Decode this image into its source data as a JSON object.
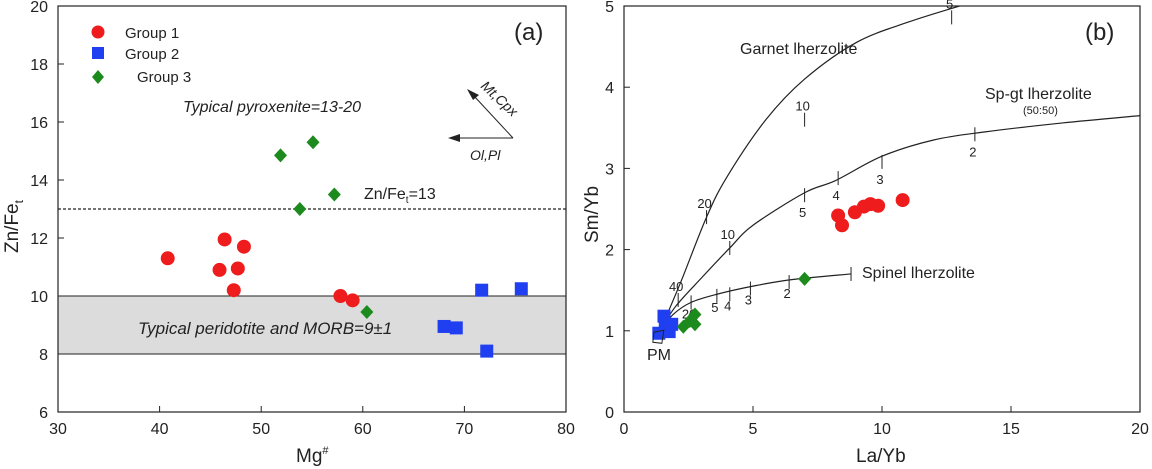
{
  "colors": {
    "group1": "#ee1c1c",
    "group2": "#1f3ff0",
    "group3": "#1d8a1d",
    "band": "#dcdcdc",
    "axis": "#222222"
  },
  "chart_data": [
    {
      "type": "scatter",
      "panel_label": "(a)",
      "xlabel_main": "Mg",
      "xlabel_sup": "#",
      "ylabel_main": "Zn/Fe",
      "ylabel_sub": "t",
      "xlim": [
        30,
        80
      ],
      "ylim": [
        6,
        20
      ],
      "xticks": [
        30,
        40,
        50,
        60,
        70,
        80
      ],
      "yticks": [
        6,
        8,
        10,
        12,
        14,
        16,
        18,
        20
      ],
      "legend": {
        "placement": "top-left",
        "entries": [
          "Group 1",
          "Group 2",
          "Group 3"
        ]
      },
      "series": [
        {
          "name": "Group 1",
          "marker": "circle",
          "color": "#ee1c1c",
          "points": [
            [
              40.8,
              11.3
            ],
            [
              45.9,
              10.9
            ],
            [
              46.4,
              11.95
            ],
            [
              47.3,
              10.2
            ],
            [
              47.7,
              10.95
            ],
            [
              48.3,
              11.7
            ],
            [
              57.8,
              10.0
            ],
            [
              59.0,
              9.85
            ]
          ]
        },
        {
          "name": "Group 2",
          "marker": "square",
          "color": "#1f3ff0",
          "points": [
            [
              68.0,
              8.95
            ],
            [
              69.2,
              8.9
            ],
            [
              71.7,
              10.2
            ],
            [
              72.2,
              8.1
            ],
            [
              75.6,
              10.25
            ]
          ]
        },
        {
          "name": "Group 3",
          "marker": "diamond",
          "color": "#1d8a1d",
          "points": [
            [
              51.9,
              14.85
            ],
            [
              53.8,
              13.0
            ],
            [
              55.1,
              15.3
            ],
            [
              57.2,
              13.5
            ],
            [
              60.4,
              9.45
            ]
          ]
        }
      ],
      "band": {
        "y": [
          8,
          10
        ],
        "label": "Typical peridotite and MORB=9±1"
      },
      "reference_line": {
        "y": 13,
        "label_main": "Zn/Fe",
        "label_sub": "t",
        "label_tail": "=13"
      },
      "text_pyroxenite": "Typical pyroxenite=13-20",
      "arrow_up_label": "Mt,Cpx",
      "arrow_left_label": "Ol,Pl"
    },
    {
      "type": "scatter",
      "panel_label": "(b)",
      "xlabel": "La/Yb",
      "ylabel": "Sm/Yb",
      "xlim": [
        0,
        20
      ],
      "ylim": [
        0,
        5
      ],
      "xticks": [
        0,
        5,
        10,
        15,
        20
      ],
      "yticks": [
        0,
        1,
        2,
        3,
        4,
        5
      ],
      "series": [
        {
          "name": "Group 1",
          "marker": "circle",
          "color": "#ee1c1c",
          "points": [
            [
              8.3,
              2.42
            ],
            [
              8.45,
              2.3
            ],
            [
              8.95,
              2.46
            ],
            [
              9.3,
              2.53
            ],
            [
              9.55,
              2.56
            ],
            [
              9.85,
              2.54
            ],
            [
              10.8,
              2.61
            ]
          ]
        },
        {
          "name": "Group 2",
          "marker": "square",
          "color": "#1f3ff0",
          "points": [
            [
              1.35,
              0.97
            ],
            [
              1.55,
              1.18
            ],
            [
              1.6,
              1.04
            ],
            [
              1.75,
              0.99
            ],
            [
              1.85,
              1.08
            ]
          ]
        },
        {
          "name": "Group 3",
          "marker": "diamond",
          "color": "#1d8a1d",
          "points": [
            [
              2.3,
              1.05
            ],
            [
              2.55,
              1.12
            ],
            [
              2.75,
              1.2
            ],
            [
              2.75,
              1.08
            ],
            [
              7.0,
              1.64
            ]
          ]
        }
      ],
      "melting_curves": [
        {
          "name": "Garnet lherzolite",
          "points": [
            [
              1.4,
              1.0
            ],
            [
              2.2,
              1.6
            ],
            [
              3.2,
              2.4
            ],
            [
              4.0,
              2.9
            ],
            [
              5.5,
              3.6
            ],
            [
              7.0,
              4.1
            ],
            [
              9.0,
              4.55
            ],
            [
              11.0,
              4.8
            ],
            [
              13.0,
              5.0
            ]
          ],
          "ticks": [
            {
              "x": 3.2,
              "y": 2.4,
              "label": "20"
            },
            {
              "x": 7.0,
              "y": 3.6,
              "label": "10"
            },
            {
              "x": 12.7,
              "y": 4.86,
              "label": "5"
            }
          ]
        },
        {
          "name": "Sp-gt lherzolite",
          "note": "(50:50)",
          "points": [
            [
              1.4,
              1.0
            ],
            [
              2.0,
              1.3
            ],
            [
              3.0,
              1.65
            ],
            [
              4.1,
              2.02
            ],
            [
              5.0,
              2.3
            ],
            [
              7.0,
              2.7
            ],
            [
              8.2,
              2.85
            ],
            [
              10.0,
              3.15
            ],
            [
              12.0,
              3.35
            ],
            [
              14.0,
              3.45
            ],
            [
              17.0,
              3.56
            ],
            [
              20.0,
              3.65
            ]
          ],
          "ticks": [
            {
              "x": 2.1,
              "y": 1.38,
              "label": "40"
            },
            {
              "x": 4.1,
              "y": 2.02,
              "label": "10"
            },
            {
              "x": 7.0,
              "y": 2.67,
              "label": "5"
            },
            {
              "x": 8.3,
              "y": 2.88,
              "label": "4"
            },
            {
              "x": 10.0,
              "y": 3.08,
              "label": "3"
            },
            {
              "x": 13.6,
              "y": 3.42,
              "label": "2"
            }
          ]
        },
        {
          "name": "Spinel lherzolite",
          "points": [
            [
              1.4,
              1.0
            ],
            [
              1.9,
              1.2
            ],
            [
              2.6,
              1.35
            ],
            [
              3.6,
              1.45
            ],
            [
              5.0,
              1.55
            ],
            [
              6.5,
              1.63
            ],
            [
              8.8,
              1.7
            ]
          ],
          "ticks": [
            {
              "x": 2.6,
              "y": 1.35,
              "label": "20"
            },
            {
              "x": 3.6,
              "y": 1.43,
              "label": "5"
            },
            {
              "x": 4.1,
              "y": 1.45,
              "label": "4"
            },
            {
              "x": 4.9,
              "y": 1.52,
              "label": "3"
            },
            {
              "x": 6.4,
              "y": 1.6,
              "label": "2"
            },
            {
              "x": 8.8,
              "y": 1.7,
              "label": ""
            }
          ]
        }
      ],
      "pm": {
        "x": 1.35,
        "y": 0.92,
        "label": "PM"
      }
    }
  ]
}
